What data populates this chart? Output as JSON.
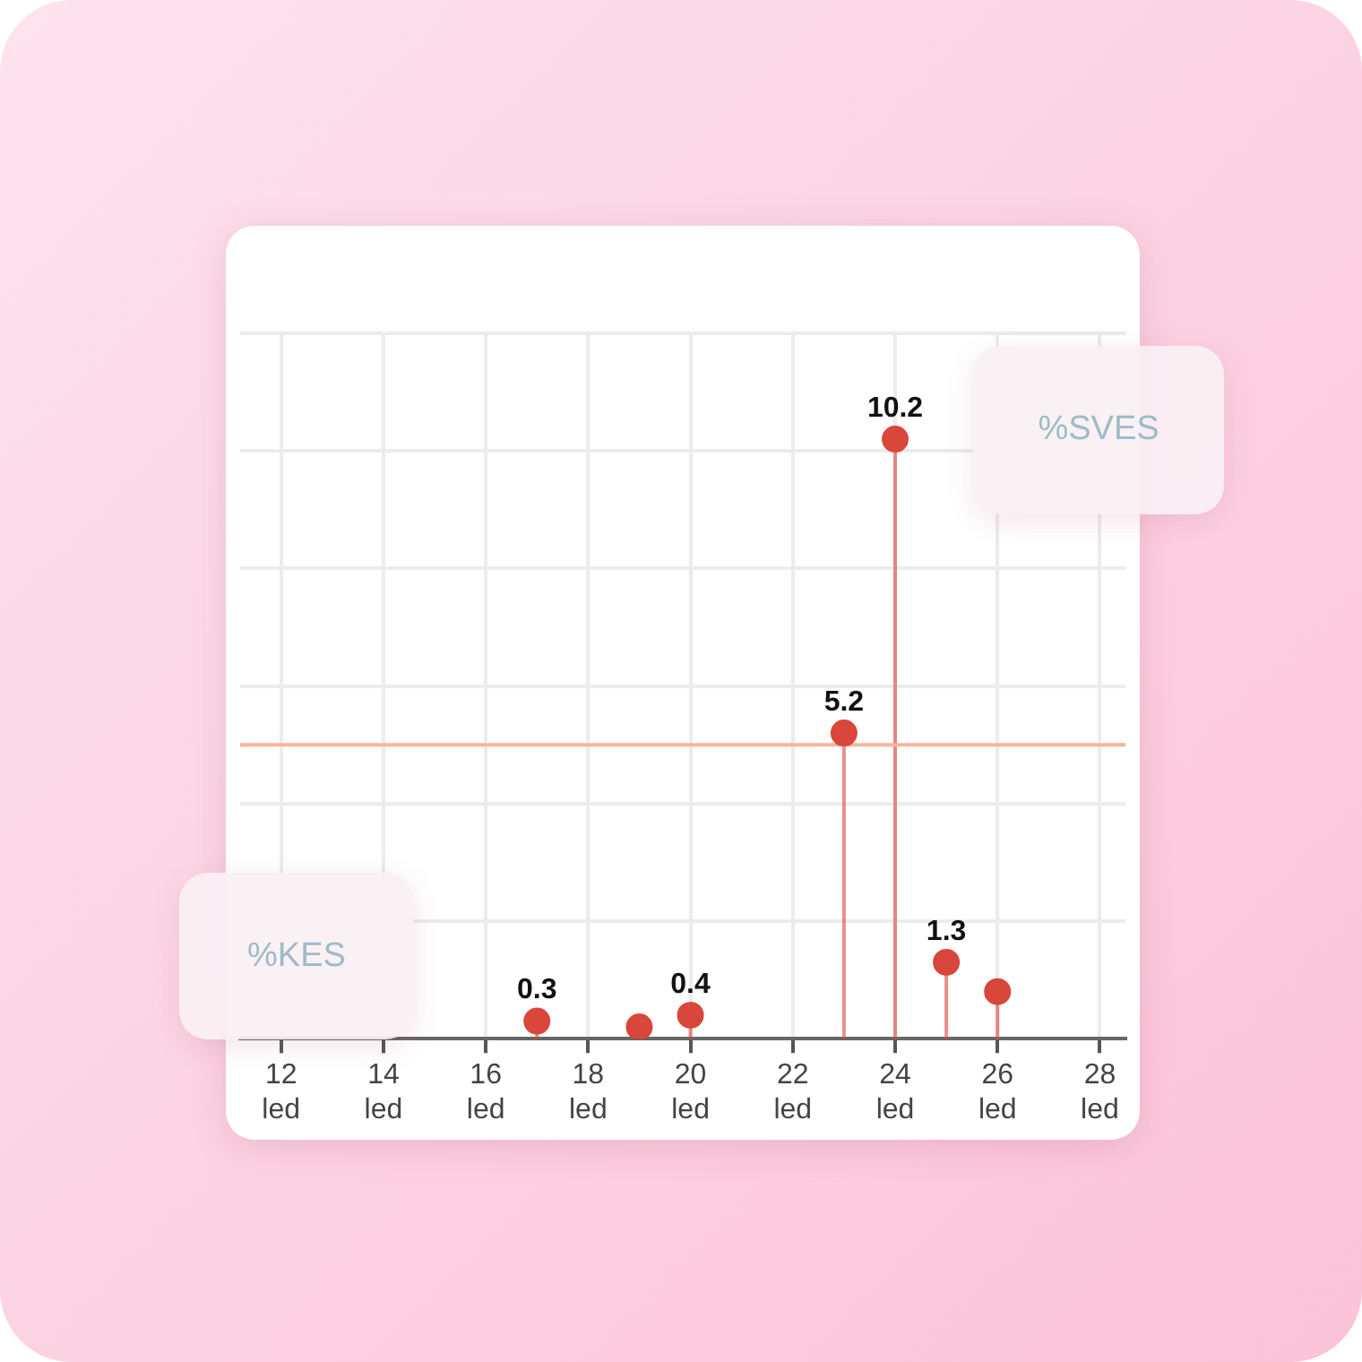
{
  "chart_data": {
    "type": "lollipop",
    "x": [
      17,
      19,
      20,
      23,
      24,
      25,
      26
    ],
    "series": [
      {
        "color": "#d9463b",
        "values": [
          0.3,
          0.2,
          0.4,
          5.2,
          10.2,
          1.3,
          0.8
        ],
        "value_labels": [
          "0.3",
          null,
          "0.4",
          "5.2",
          "10.2",
          "1.3",
          null
        ]
      }
    ],
    "xlim": [
      11.2,
      28.5
    ],
    "xticks": [
      {
        "value": 12,
        "label": "12 led"
      },
      {
        "value": 14,
        "label": "14 led"
      },
      {
        "value": 16,
        "label": "16 led"
      },
      {
        "value": 18,
        "label": "18 led"
      },
      {
        "value": 20,
        "label": "20 led"
      },
      {
        "value": 22,
        "label": "22 led"
      },
      {
        "value": 24,
        "label": "24 led"
      },
      {
        "value": 26,
        "label": "26 led"
      },
      {
        "value": 28,
        "label": "28 led"
      }
    ],
    "ylim": [
      0,
      12
    ],
    "yticks": [
      {
        "value": 0,
        "label": null
      },
      {
        "value": 2,
        "label": null
      },
      {
        "value": 4,
        "label": null
      },
      {
        "value": 6,
        "label": null
      },
      {
        "value": 8,
        "label": null
      },
      {
        "value": 10,
        "label": null
      },
      {
        "value": 12,
        "label": null
      }
    ],
    "tick_labels": "x",
    "grid": true,
    "legend": false,
    "marker": "circle",
    "ref_lines": [
      {
        "axis": "y",
        "value": 5,
        "color": "#f9b59a"
      }
    ],
    "annotations": [
      "%SVES",
      "%KES"
    ]
  }
}
